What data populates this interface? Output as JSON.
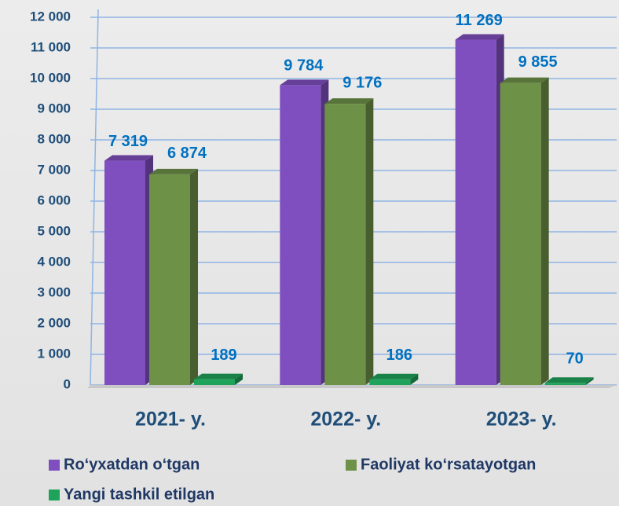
{
  "chart_data": {
    "type": "bar",
    "categories": [
      "2021- y.",
      "2022- y.",
      "2023- y."
    ],
    "series": [
      {
        "name": "Ro‘yxatdan o‘tgan",
        "color": "#7f4fbf",
        "values": [
          7319,
          9784,
          11269
        ],
        "value_labels": [
          "7 319",
          "9 784",
          "11 269"
        ]
      },
      {
        "name": "Faoliyat ko‘rsatayotgan",
        "color": "#6e9148",
        "values": [
          6874,
          9176,
          9855
        ],
        "value_labels": [
          "6 874",
          "9 176",
          "9 855"
        ]
      },
      {
        "name": "Yangi tashkil etilgan",
        "color": "#1fa35a",
        "values": [
          189,
          186,
          70
        ]
      }
    ],
    "ylim": [
      0,
      12000
    ],
    "yticks": [
      0,
      {
        "value": 1000,
        "label": "1 000"
      },
      {
        "value": 2000,
        "label": "2 000"
      },
      {
        "value": 3000,
        "label": "3 000"
      },
      {
        "value": 4000,
        "label": "4 000"
      },
      {
        "value": 5000,
        "label": "5 000"
      },
      {
        "value": 6000,
        "label": "6 000"
      },
      {
        "value": 7000,
        "label": "7 000"
      },
      {
        "value": 8000,
        "label": "8 000"
      },
      {
        "value": 9000,
        "label": "9 000"
      },
      {
        "value": 10000,
        "label": "10 000"
      },
      {
        "value": 11000,
        "label": "11 000"
      },
      {
        "value": 12000,
        "label": "12 000"
      }
    ],
    "grid": true
  }
}
